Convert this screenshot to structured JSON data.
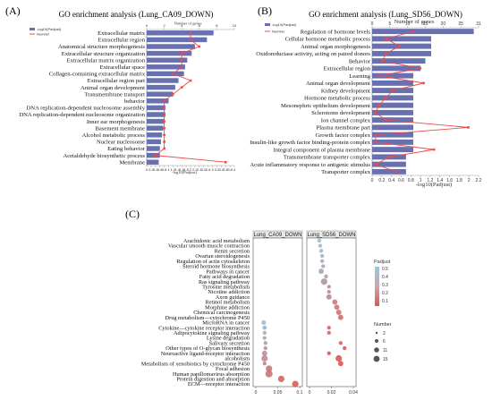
{
  "colors": {
    "bar": "#6870b0",
    "line": "#ee4a4a",
    "strip_bg": "#e8e8e8",
    "cbar_high": "#e0534f",
    "cbar_low": "#8fcde0",
    "dot_gray": "#bdbdbd"
  },
  "chart_data": [
    {
      "type": "bar",
      "panel": "(A)",
      "title": "GO enrichment analysis (Lung_CA09_DOWN)",
      "xlabel": "-log10(Padjust)",
      "x2label": "Number of genes",
      "legend": [
        "-log10(Padjust)",
        "Number"
      ],
      "xlim": [
        0,
        4.0
      ],
      "xticks": [
        "0",
        "0.2",
        "0.4",
        "0.6",
        "0.8",
        "1",
        "1.2",
        "1.4",
        "1.6",
        "1.8",
        "2",
        "2.2",
        "2.4",
        "2.6",
        "2.8",
        "3",
        "3.2",
        "3.4",
        "3.6",
        "3.8",
        "4"
      ],
      "x2lim": [
        0,
        10
      ],
      "x2ticks": [
        "0",
        "2",
        "4",
        "6",
        "8",
        "10"
      ],
      "categories": [
        "Extracellular matrix",
        "Extracellular region",
        "Anatomical structure morphogenesis",
        "Extracellular structure organization",
        "Extracellular matrix organization",
        "Extracellular space",
        "Collagen-containing extracellular matrix",
        "Extracellular region part",
        "Animal organ development",
        "Transmembrane transport",
        "behavior",
        "DNA replication-dependent nucleosome assembly",
        "DNA replication-dependent nucleosome organization",
        "Inner ear morphogenesis",
        "Basement membrane",
        "Alcohol metabolic process",
        "Nuclear nucleosome",
        "Eating behavior",
        "Acetaldehyde biosynthetic process",
        "Membrane"
      ],
      "values": [
        3.05,
        2.75,
        2.2,
        2.05,
        1.85,
        1.75,
        1.7,
        1.45,
        1.3,
        1.2,
        1.0,
        0.85,
        0.85,
        0.8,
        0.75,
        0.7,
        0.65,
        0.6,
        0.6,
        0.55
      ],
      "genes": [
        5,
        5,
        6,
        4,
        4,
        4,
        3,
        5,
        4,
        3,
        2,
        2,
        2,
        2,
        2,
        2,
        2,
        2,
        1,
        9
      ]
    },
    {
      "type": "bar",
      "panel": "(B)",
      "title": "GO enrichment analysis (Lung_SD56_DOWN)",
      "xlabel": "-log10(Padjust)",
      "x2label": "Number of genes",
      "legend": [
        "-log10(Padjust)",
        "Number"
      ],
      "xlim": [
        0,
        2.2
      ],
      "xticks": [
        "0",
        "0.2",
        "0.4",
        "0.6",
        "0.8",
        "1",
        "1.2",
        "1.4",
        "1.6",
        "1.8",
        "2",
        "2.2"
      ],
      "x2lim": [
        0,
        31
      ],
      "x2ticks": [
        "0",
        "5",
        "10",
        "15",
        "20",
        "25",
        "31"
      ],
      "categories": [
        "Regulation of hormone levels",
        "Cellular hormone metabolic process",
        "Animal organ morphogenesis",
        "Oxidoreductase activity, acting on paired donors",
        "Behavior",
        "Extracellular region",
        "Learning",
        "Animal organ development",
        "Kidney development",
        "Hormone metabolic process",
        "Mesonephric epithelium development",
        "Sclerotome development",
        "Ion channel complex",
        "Plasma membrane part",
        "Growth factor complex",
        "Insulin-like growth factor binding-protein complex",
        "Integral component of plasma membrane",
        "Transmembrane transporter complex",
        "Acute inflammatory response to antigenic stimulus",
        "Transporter complex"
      ],
      "values": [
        2.1,
        1.22,
        1.22,
        1.22,
        1.1,
        1.0,
        0.85,
        0.85,
        0.85,
        0.85,
        0.85,
        0.85,
        0.85,
        0.85,
        0.85,
        0.85,
        0.85,
        0.7,
        0.7,
        0.7
      ],
      "genes": [
        12,
        4,
        8,
        4,
        3,
        14,
        2,
        15,
        6,
        4,
        2,
        1,
        4,
        28,
        1,
        1,
        18,
        5,
        1,
        7
      ]
    },
    {
      "type": "scatter",
      "panel": "(C)",
      "facets": [
        "Lung_CA09_DOWN",
        "Lung_SD56_DOWN"
      ],
      "facet_xlim": [
        [
          0,
          0.1
        ],
        [
          0,
          0.045
        ]
      ],
      "facet_xticks": [
        [
          "0",
          "0.05",
          "0.1"
        ],
        [
          "0",
          "0.02",
          "0.04"
        ]
      ],
      "categories": [
        "Arachidonic acid metabolism",
        "Vascular smooth muscle contraction",
        "Renin secretion",
        "Ovarian steroidogenesis",
        "Regulation of actin cytoskeleton",
        "Steroid hormone biosynthesis",
        "Pathways in cancer",
        "Fatty acid degradation",
        "Ras signaling pathway",
        "Tyrosine metabolism",
        "Nicotine addiction",
        "Axon guidance",
        "Retinol metabolism",
        "Morphine addiction",
        "Chemical carcinogenesis",
        "Drug metabolism—cytochrome P450",
        "MicroRNA in cancer",
        "Cytokine—cytokine receptor interaction",
        "Adipocytokine signaling pathway",
        "Lysine degradation",
        "Salivary secretion",
        "Other types of O-glycan biosynthesis",
        "Neuroactive ligand-receptor interaction",
        "alcoholism",
        "Metabolism of xenobiotics by cytochrome P450",
        "Focal adhesion",
        "Human papillomavirus absorption",
        "Protein digestion and absorption",
        "ECM—receptor interaction"
      ],
      "series": [
        {
          "name": "Lung_CA09_DOWN",
          "points": [
            {
              "cat": "MicroRNA in cancer",
              "x": 0.018,
              "padj": 0.5,
              "count": 4
            },
            {
              "cat": "Cytokine—cytokine receptor interaction",
              "x": 0.02,
              "padj": 0.45,
              "count": 3
            },
            {
              "cat": "Adipocytokine signaling pathway",
              "x": 0.02,
              "padj": 0.42,
              "count": 2
            },
            {
              "cat": "Lysine degradation",
              "x": 0.02,
              "padj": 0.4,
              "count": 2
            },
            {
              "cat": "Salivary secretion",
              "x": 0.022,
              "padj": 0.35,
              "count": 2
            },
            {
              "cat": "Other types of O-glycan biosynthesis",
              "x": 0.022,
              "padj": 0.32,
              "count": 2
            },
            {
              "cat": "Neuroactive ligand-receptor interaction",
              "x": 0.02,
              "padj": 0.3,
              "count": 6
            },
            {
              "cat": "alcoholism",
              "x": 0.02,
              "padj": 0.28,
              "count": 11
            },
            {
              "cat": "Metabolism of xenobiotics by cytochrome P450",
              "x": 0.02,
              "padj": 0.25,
              "count": 2
            },
            {
              "cat": "Focal adhesion",
              "x": 0.03,
              "padj": 0.2,
              "count": 11
            },
            {
              "cat": "Human papillomavirus absorption",
              "x": 0.03,
              "padj": 0.18,
              "count": 15
            },
            {
              "cat": "Protein digestion and absorption",
              "x": 0.058,
              "padj": 0.12,
              "count": 11
            },
            {
              "cat": "ECM—receptor interaction",
              "x": 0.09,
              "padj": 0.08,
              "count": 11
            }
          ]
        },
        {
          "name": "Lung_SD56_DOWN",
          "points": [
            {
              "cat": "Arachidonic acid metabolism",
              "x": 0.01,
              "padj": 0.5,
              "count": 2
            },
            {
              "cat": "Vascular smooth muscle contraction",
              "x": 0.011,
              "padj": 0.48,
              "count": 2
            },
            {
              "cat": "Renin secretion",
              "x": 0.012,
              "padj": 0.46,
              "count": 2
            },
            {
              "cat": "Ovarian steroidogenesis",
              "x": 0.013,
              "padj": 0.44,
              "count": 2
            },
            {
              "cat": "Regulation of actin cytoskeleton",
              "x": 0.013,
              "padj": 0.42,
              "count": 2
            },
            {
              "cat": "Steroid hormone biosynthesis",
              "x": 0.014,
              "padj": 0.4,
              "count": 2
            },
            {
              "cat": "Pathways in cancer",
              "x": 0.012,
              "padj": 0.38,
              "count": 6
            },
            {
              "cat": "Fatty acid degradation",
              "x": 0.017,
              "padj": 0.35,
              "count": 2
            },
            {
              "cat": "Ras signaling pathway",
              "x": 0.015,
              "padj": 0.32,
              "count": 11
            },
            {
              "cat": "Tyrosine metabolism",
              "x": 0.02,
              "padj": 0.3,
              "count": 2
            },
            {
              "cat": "Nicotine addiction",
              "x": 0.02,
              "padj": 0.28,
              "count": 2
            },
            {
              "cat": "Axon guidance",
              "x": 0.02,
              "padj": 0.25,
              "count": 6
            },
            {
              "cat": "Retinol metabolism",
              "x": 0.026,
              "padj": 0.22,
              "count": 6
            },
            {
              "cat": "Morphine addiction",
              "x": 0.028,
              "padj": 0.2,
              "count": 6
            },
            {
              "cat": "Chemical carcinogenesis",
              "x": 0.03,
              "padj": 0.18,
              "count": 6
            },
            {
              "cat": "Drug metabolism—cytochrome P450",
              "x": 0.032,
              "padj": 0.15,
              "count": 6
            },
            {
              "cat": "Cytokine—cytokine receptor interaction",
              "x": 0.02,
              "padj": 0.14,
              "count": 2
            },
            {
              "cat": "Adipocytokine signaling pathway",
              "x": 0.02,
              "padj": 0.12,
              "count": 2
            },
            {
              "cat": "Salivary secretion",
              "x": 0.032,
              "padj": 0.1,
              "count": 2
            },
            {
              "cat": "Other types of O-glycan biosynthesis",
              "x": 0.036,
              "padj": 0.08,
              "count": 2
            },
            {
              "cat": "Neuroactive ligand-receptor interaction",
              "x": 0.02,
              "padj": 0.08,
              "count": 2
            },
            {
              "cat": "alcoholism",
              "x": 0.03,
              "padj": 0.06,
              "count": 11
            },
            {
              "cat": "Metabolism of xenobiotics by cytochrome P450",
              "x": 0.032,
              "padj": 0.06,
              "count": 6
            }
          ]
        }
      ],
      "color_legend": {
        "title": "Padjust",
        "ticks": [
          "0.5",
          "0.4",
          "0.3",
          "0.2",
          "0.1"
        ]
      },
      "size_legend": {
        "title": "Number",
        "ticks": [
          "2",
          "6",
          "11",
          "15"
        ]
      }
    }
  ]
}
